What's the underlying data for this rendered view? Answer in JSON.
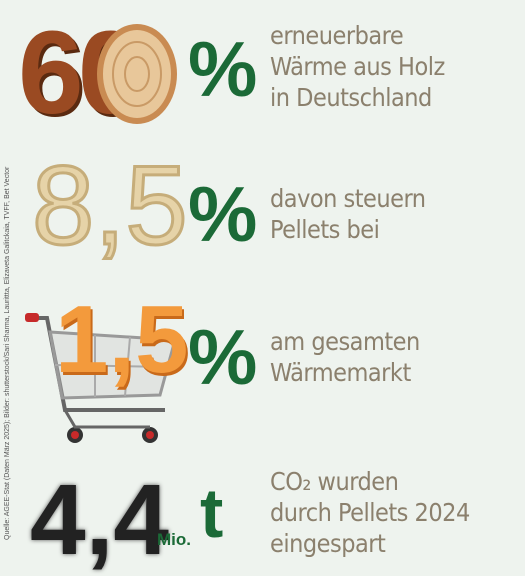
{
  "source": "Quelle: AGEE-Stat (Daten März 2025); Bilder: shutterstock/Sari Sharma, Laurittta, Elizaveta Galitckaia, TVFF, Bet Vector",
  "items": [
    {
      "number": "60",
      "unit": "%",
      "lines": [
        "erneuerbare",
        "Wärme aus Holz",
        "in Deutschland"
      ]
    },
    {
      "number": "8,5",
      "unit": "%",
      "lines": [
        "davon steuern",
        "Pellets bei"
      ]
    },
    {
      "number": "1,5",
      "unit": "%",
      "lines": [
        "am gesamten",
        "Wärmemarkt"
      ]
    },
    {
      "number": "4,4",
      "unit_prefix": "Mio.",
      "unit": "t",
      "lines": [
        "CO₂ wurden",
        "durch Pellets 2024",
        "eingespart"
      ]
    }
  ]
}
